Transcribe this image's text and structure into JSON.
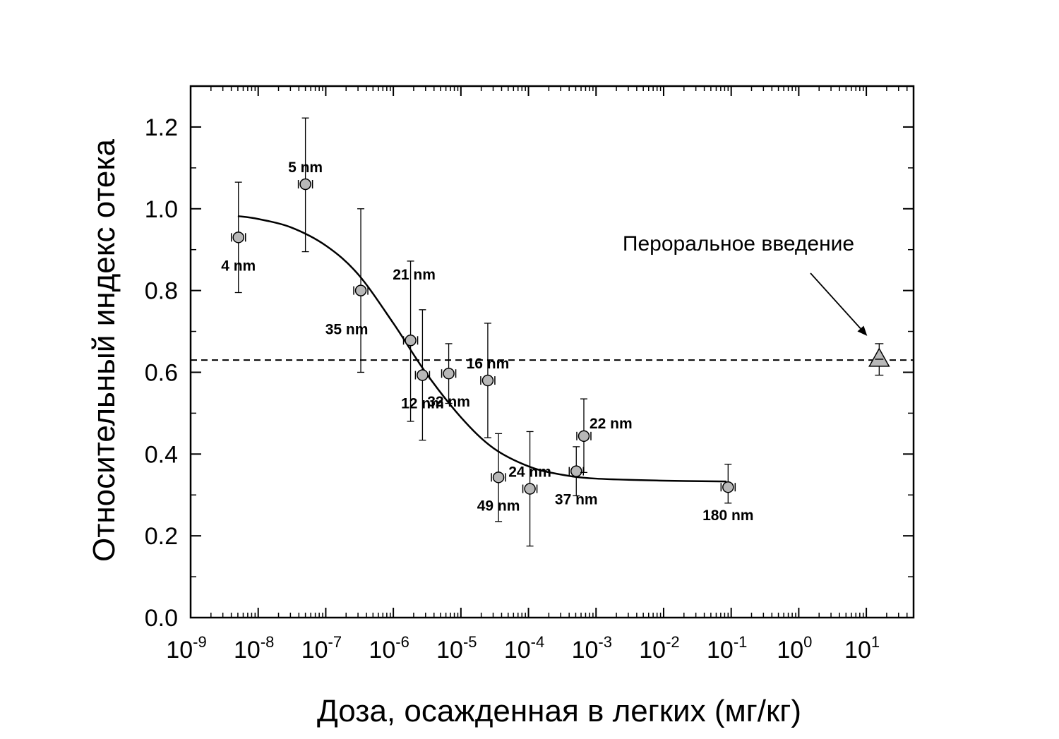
{
  "chart_data": {
    "type": "scatter",
    "title": "",
    "xlabel": "Доза, осажденная в легких (мг/кг)",
    "ylabel": "Относительный индекс отека",
    "x_scale": "log",
    "xlim": [
      1e-09,
      50
    ],
    "ylim": [
      0.0,
      1.3
    ],
    "x_ticks": [
      {
        "value": 1e-09,
        "base": "10",
        "exp": "-9"
      },
      {
        "value": 1e-08,
        "base": "10",
        "exp": "-8"
      },
      {
        "value": 1e-07,
        "base": "10",
        "exp": "-7"
      },
      {
        "value": 1e-06,
        "base": "10",
        "exp": "-6"
      },
      {
        "value": 1e-05,
        "base": "10",
        "exp": "-5"
      },
      {
        "value": 0.0001,
        "base": "10",
        "exp": "-4"
      },
      {
        "value": 0.001,
        "base": "10",
        "exp": "-3"
      },
      {
        "value": 0.01,
        "base": "10",
        "exp": "-2"
      },
      {
        "value": 0.1,
        "base": "10",
        "exp": "-1"
      },
      {
        "value": 1,
        "base": "10",
        "exp": "0"
      },
      {
        "value": 10,
        "base": "10",
        "exp": "1"
      }
    ],
    "y_ticks": [
      {
        "value": 0.0,
        "label": "0.0"
      },
      {
        "value": 0.2,
        "label": "0.2"
      },
      {
        "value": 0.4,
        "label": "0.4"
      },
      {
        "value": 0.6,
        "label": "0.6"
      },
      {
        "value": 0.8,
        "label": "0.8"
      },
      {
        "value": 1.0,
        "label": "1.0"
      },
      {
        "value": 1.2,
        "label": "1.2"
      }
    ],
    "points": [
      {
        "label": "4 nm",
        "x": 5.1e-09,
        "y": 0.93,
        "yerr_low": 0.795,
        "yerr_high": 1.065,
        "label_pos": "below"
      },
      {
        "label": "5 nm",
        "x": 5e-08,
        "y": 1.06,
        "yerr_low": 0.895,
        "yerr_high": 1.222,
        "label_pos": "above"
      },
      {
        "label": "35 nm",
        "x": 3.3e-07,
        "y": 0.8,
        "yerr_low": 0.6,
        "yerr_high": 1.0,
        "label_pos": "left-below"
      },
      {
        "label": "21 nm",
        "x": 1.8e-06,
        "y": 0.678,
        "yerr_low": 0.48,
        "yerr_high": 0.872,
        "label_pos": "above-left"
      },
      {
        "label": "12 nm",
        "x": 2.7e-06,
        "y": 0.593,
        "yerr_low": 0.434,
        "yerr_high": 0.753,
        "label_pos": "below"
      },
      {
        "label": "32 nm",
        "x": 6.6e-06,
        "y": 0.597,
        "yerr_low": 0.524,
        "yerr_high": 0.67,
        "label_pos": "below"
      },
      {
        "label": "16 nm",
        "x": 2.5e-05,
        "y": 0.58,
        "yerr_low": 0.44,
        "yerr_high": 0.72,
        "label_pos": "above"
      },
      {
        "label": "49 nm",
        "x": 3.6e-05,
        "y": 0.343,
        "yerr_low": 0.235,
        "yerr_high": 0.45,
        "label_pos": "below"
      },
      {
        "label": "24 nm",
        "x": 0.000105,
        "y": 0.315,
        "yerr_low": 0.175,
        "yerr_high": 0.455,
        "label_pos": "above"
      },
      {
        "label": "37 nm",
        "x": 0.00051,
        "y": 0.358,
        "yerr_low": 0.298,
        "yerr_high": 0.418,
        "label_pos": "below"
      },
      {
        "label": "22 nm",
        "x": 0.00066,
        "y": 0.444,
        "yerr_low": 0.355,
        "yerr_high": 0.535,
        "label_pos": "right"
      },
      {
        "label": "180 nm",
        "x": 0.09,
        "y": 0.319,
        "yerr_low": 0.28,
        "yerr_high": 0.375,
        "label_pos": "below"
      }
    ],
    "fit_curve": {
      "x": [
        5e-09,
        1e-08,
        3e-08,
        1e-07,
        3e-07,
        1e-06,
        3e-06,
        1e-05,
        3e-05,
        0.0001,
        0.0003,
        0.001,
        0.01,
        0.085
      ],
      "y": [
        0.982,
        0.975,
        0.955,
        0.91,
        0.84,
        0.72,
        0.6,
        0.49,
        0.415,
        0.37,
        0.35,
        0.34,
        0.335,
        0.333
      ]
    },
    "reference_line": {
      "y": 0.63,
      "style": "dashed"
    },
    "oral_point": {
      "x": 15.5,
      "y": 0.632,
      "yerr_low": 0.593,
      "yerr_high": 0.67,
      "marker": "triangle"
    },
    "annotation": {
      "text": "Пероральное введение",
      "target": "oral_point"
    },
    "grid": false,
    "legend": "none",
    "colors": {
      "marker_fill": "#b8b8b8",
      "marker_edge": "#000000",
      "line": "#000000",
      "triangle_fill": "#b8b8b8"
    }
  }
}
